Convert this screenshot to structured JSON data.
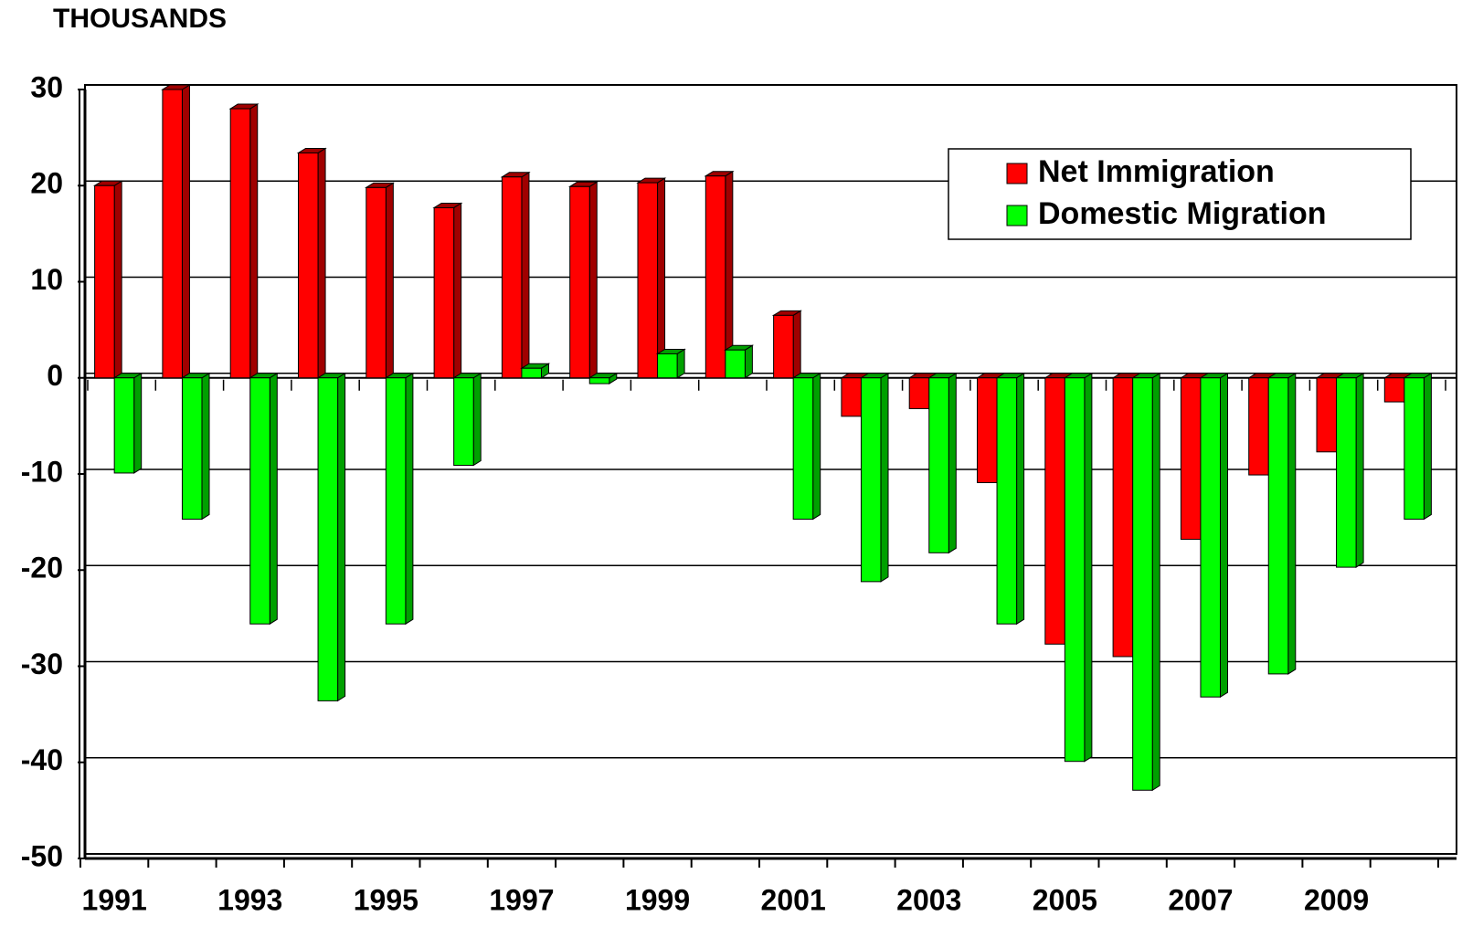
{
  "chart_data": {
    "type": "bar3d",
    "y_label": "THOUSANDS",
    "categories": [
      "1991",
      null,
      "1993",
      null,
      "1995",
      null,
      "1997",
      null,
      "1999",
      null,
      "2001",
      null,
      "2003",
      null,
      "2005",
      null,
      "2007",
      null,
      "2009",
      null
    ],
    "series": [
      {
        "name": "Net Immigration",
        "color": "#ff0000",
        "side_color": "#a00000",
        "values": [
          20,
          30,
          28,
          23.4,
          19.8,
          17.7,
          20.9,
          19.9,
          20.3,
          21,
          6.5,
          -4,
          -3.2,
          -10.9,
          -27.7,
          -29,
          -16.8,
          -10.1,
          -7.7,
          -2.5
        ]
      },
      {
        "name": "Domestic Migration",
        "color": "#00ff00",
        "side_color": "#00a000",
        "values": [
          -9.9,
          -14.7,
          -25.6,
          -33.6,
          -25.6,
          -9.1,
          1,
          -0.6,
          2.5,
          2.9,
          -14.7,
          -21.2,
          -18.2,
          -25.6,
          -39.9,
          -42.9,
          -33.2,
          -30.8,
          -19.7,
          -14.7
        ]
      }
    ],
    "ylim": [
      -50,
      30
    ],
    "yticks": [
      -50,
      -40,
      -30,
      -20,
      -10,
      0,
      10,
      20,
      30
    ],
    "grid": true,
    "legend": "upper right"
  }
}
